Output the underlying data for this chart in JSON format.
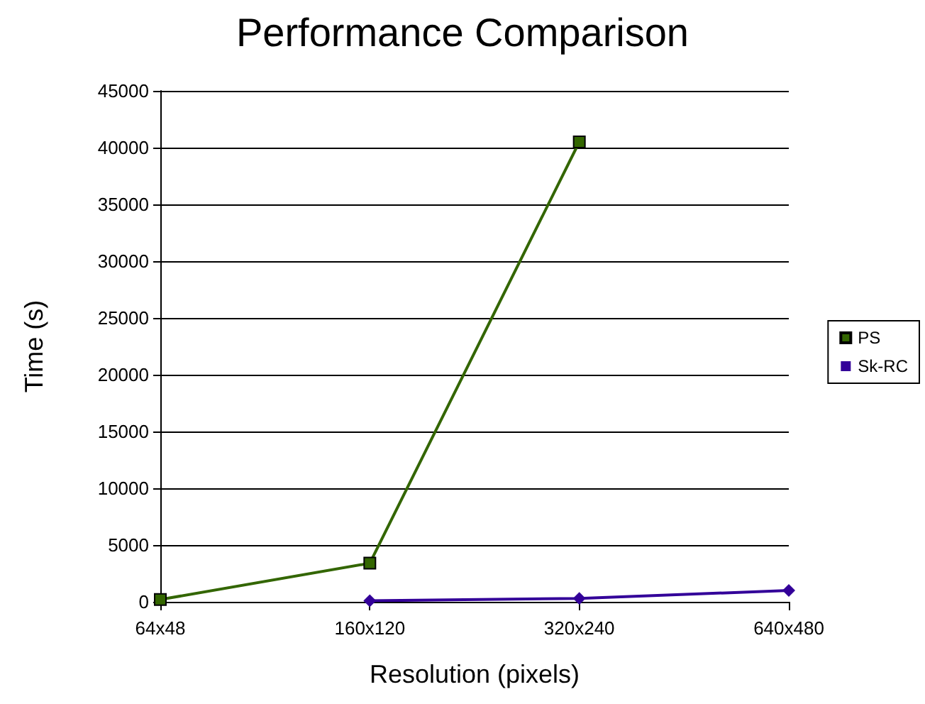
{
  "chart_data": {
    "type": "line",
    "title": "Performance Comparison",
    "xlabel": "Resolution (pixels)",
    "ylabel": "Time (s)",
    "categories": [
      "64x48",
      "160x120",
      "320x240",
      "640x480"
    ],
    "series": [
      {
        "name": "PS",
        "color": "#336600",
        "marker": "square",
        "values": [
          200,
          3400,
          40500,
          null
        ]
      },
      {
        "name": "Sk-RC",
        "color": "#330099",
        "marker": "diamond",
        "values": [
          null,
          100,
          300,
          1000
        ]
      }
    ],
    "ylim": [
      0,
      45000
    ],
    "yticks": [
      0,
      5000,
      10000,
      15000,
      20000,
      25000,
      30000,
      35000,
      40000,
      45000
    ],
    "grid": "y",
    "legend": "right"
  }
}
